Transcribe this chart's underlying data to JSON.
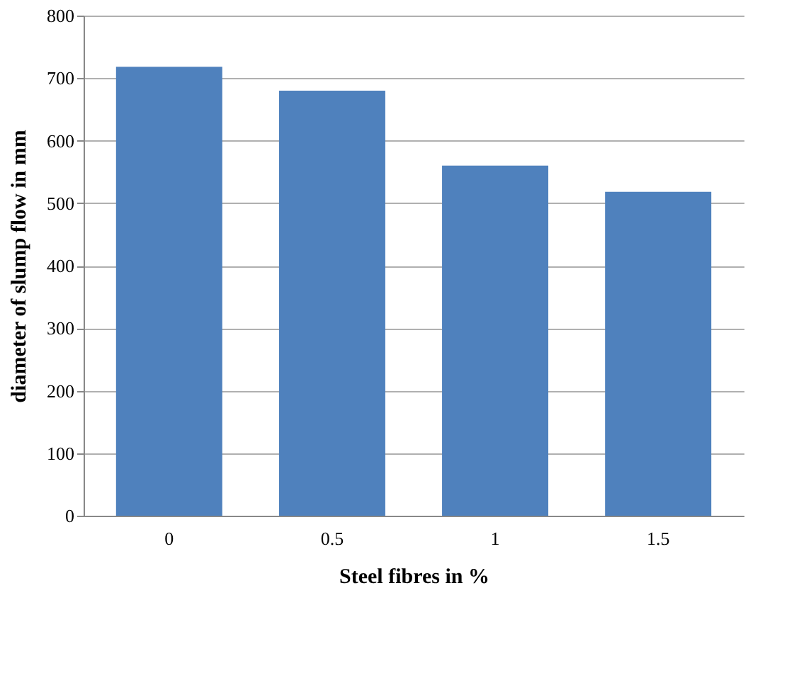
{
  "chart_data": {
    "type": "bar",
    "xlabel": "Steel fibres in %",
    "ylabel": "diameter of slump flow in mm",
    "categories": [
      "0",
      "0.5",
      "1",
      "1.5"
    ],
    "values": [
      718,
      680,
      560,
      518
    ],
    "color": "#4f81bd",
    "ylim": [
      0,
      800
    ],
    "yticks": [
      0,
      100,
      200,
      300,
      400,
      500,
      600,
      700,
      800
    ],
    "grid": "y"
  }
}
